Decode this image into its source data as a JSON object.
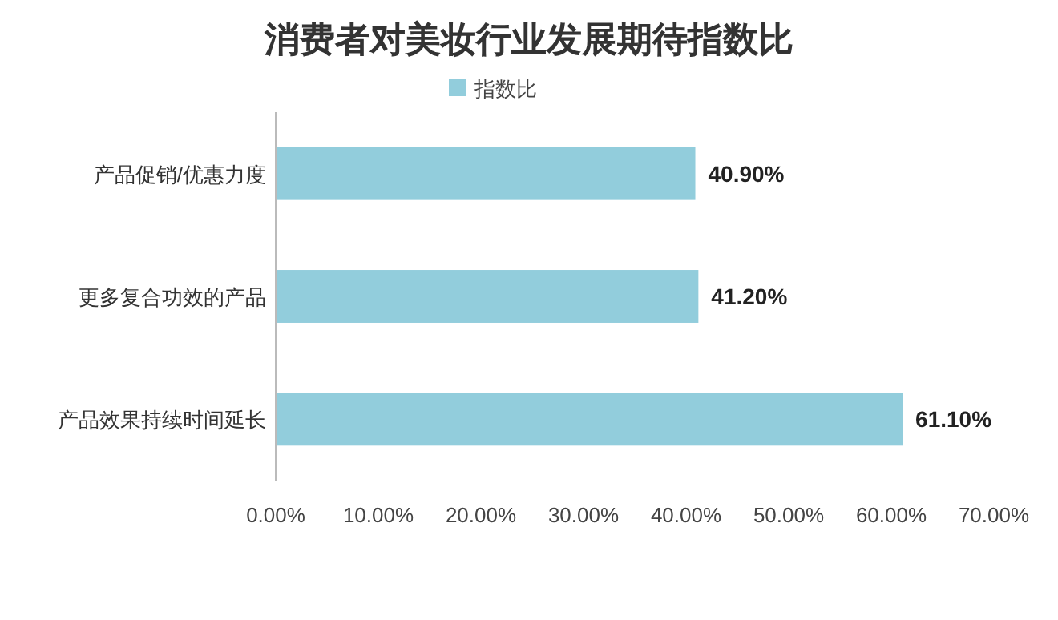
{
  "chart_data": {
    "type": "bar",
    "orientation": "horizontal",
    "title": "消费者对美妆行业发展期待指数比",
    "categories": [
      "产品促销/优惠力度",
      "更多复合功效的产品",
      "产品效果持续时间延长"
    ],
    "series": [
      {
        "name": "指数比",
        "color": "#92cddc",
        "values": [
          40.9,
          41.2,
          61.1
        ],
        "value_labels": [
          "40.90%",
          "41.20%",
          "61.10%"
        ]
      }
    ],
    "xlim": [
      0,
      70
    ],
    "xticks": [
      {
        "value": 0,
        "label": "0.00%"
      },
      {
        "value": 10,
        "label": "10.00%"
      },
      {
        "value": 20,
        "label": "20.00%"
      },
      {
        "value": 30,
        "label": "30.00%"
      },
      {
        "value": 40,
        "label": "40.00%"
      },
      {
        "value": 50,
        "label": "50.00%"
      },
      {
        "value": 60,
        "label": "60.00%"
      },
      {
        "value": 70,
        "label": "70.00%"
      }
    ],
    "legend": "top",
    "grid": false
  }
}
